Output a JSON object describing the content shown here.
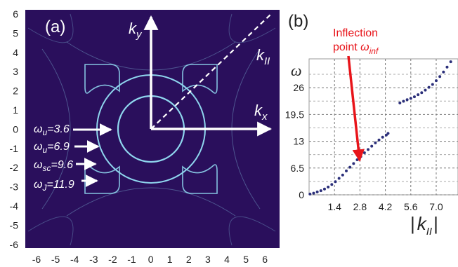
{
  "panel_a": {
    "label": "(a)",
    "x_ticks": [
      "-6",
      "-5",
      "-4",
      "-3",
      "-2",
      "-1",
      "0",
      "1",
      "2",
      "3",
      "4",
      "5",
      "6"
    ],
    "y_ticks": [
      "6",
      "5",
      "4",
      "3",
      "2",
      "1",
      "0",
      "-1",
      "-2",
      "-3",
      "-4",
      "-5",
      "-6"
    ],
    "axis_x": "k",
    "axis_x_sub": "x",
    "axis_y": "k",
    "axis_y_sub": "y",
    "diag": "k",
    "diag_sub": "II",
    "annotations": [
      {
        "sym": "ω",
        "sub": "u",
        "val": "=3.6"
      },
      {
        "sym": "ω",
        "sub": "u",
        "val": "=6.9"
      },
      {
        "sym": "ω",
        "sub": "sc",
        "val": "=9.6"
      },
      {
        "sym": "ω",
        "sub": "J",
        "val": "=11.9"
      }
    ],
    "colors": {
      "background": "#2a0f5c",
      "contour": "#8fd6ee",
      "arrows": "#ffffff"
    }
  },
  "panel_b": {
    "label": "(b)",
    "inflection_line1": "Inflection",
    "inflection_line2": "point ",
    "inflection_sym": "ω",
    "inflection_sub": "inf",
    "ylabel": "ω",
    "xlabel_bar": "|",
    "xlabel_k": "k",
    "xlabel_sub": "II",
    "colors": {
      "points": "#2b2f7a",
      "arrow": "#e8141a"
    }
  },
  "chart_data": {
    "type": "scatter",
    "title": "",
    "xlabel": "|kII|",
    "ylabel": "ω",
    "xlim": [
      0,
      8.2
    ],
    "ylim": [
      0,
      33
    ],
    "x_ticks": [
      1.4,
      2.8,
      4.2,
      5.6,
      7.0
    ],
    "x_tick_labels": [
      "1.4",
      "2.8",
      "4.2",
      "5.6",
      "7.0"
    ],
    "y_ticks": [
      0,
      6.5,
      13,
      19.5,
      26
    ],
    "y_tick_labels": [
      "0",
      "6.5",
      "13",
      "19.5",
      "26"
    ],
    "grid": true,
    "series": [
      {
        "x": [
          0.05,
          0.25,
          0.45,
          0.65,
          0.85,
          1.05,
          1.25,
          1.45,
          1.65,
          1.85,
          2.05,
          2.25,
          2.45,
          2.65,
          2.85,
          3.05,
          3.25,
          3.45,
          3.65,
          3.85,
          4.05,
          4.25,
          4.35
        ],
        "y": [
          0.2,
          0.4,
          0.7,
          1.0,
          1.4,
          1.9,
          2.5,
          3.2,
          4.0,
          4.8,
          5.8,
          6.7,
          7.6,
          8.5,
          9.3,
          10.2,
          11.0,
          11.8,
          12.6,
          13.3,
          14.0,
          14.5,
          14.9
        ]
      },
      {
        "x": [
          5.0,
          5.2,
          5.4,
          5.6,
          5.8,
          6.0,
          6.2,
          6.4,
          6.6,
          6.8,
          7.0,
          7.2,
          7.4,
          7.6,
          7.8
        ],
        "y": [
          22.3,
          22.7,
          23.1,
          23.4,
          23.8,
          24.3,
          24.8,
          25.4,
          26.1,
          26.8,
          27.7,
          28.7,
          29.8,
          31.0,
          32.3
        ]
      }
    ]
  }
}
